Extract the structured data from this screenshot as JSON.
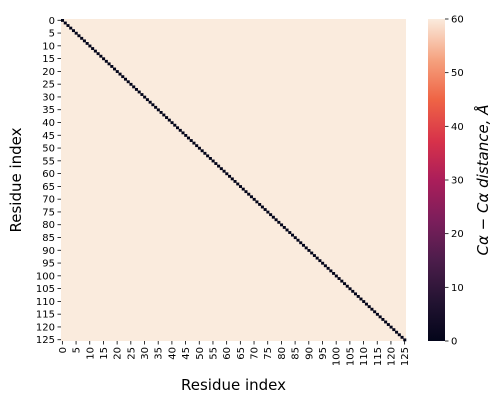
{
  "chart_data": {
    "type": "heatmap",
    "xlabel": "Residue index",
    "ylabel": "Residue index",
    "n_residues": 126,
    "tick_values": [
      0,
      5,
      10,
      15,
      20,
      25,
      30,
      35,
      40,
      45,
      50,
      55,
      60,
      65,
      70,
      75,
      80,
      85,
      90,
      95,
      100,
      105,
      110,
      115,
      120,
      125
    ],
    "colorbar": {
      "label": "Cα − Cα distance, Å",
      "range": [
        0,
        60
      ],
      "ticks": [
        0,
        10,
        20,
        30,
        40,
        50,
        60
      ]
    },
    "colormap": "rocket",
    "diagonal_value": 0,
    "off_diagonal_value": 60,
    "colors": {
      "low": "#03051a",
      "high": "#faebdd"
    }
  }
}
